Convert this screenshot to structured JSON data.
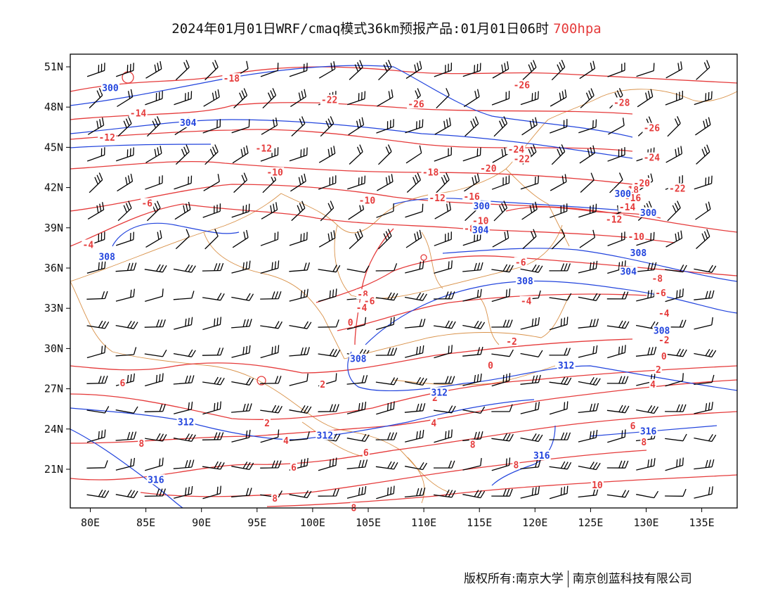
{
  "title": {
    "text": "2024年01月01日WRF/cmaq模式36km预报产品:01月01日06时",
    "level": "700hpa"
  },
  "footer": {
    "copyright": "版权所有:南京大学",
    "company": "南京创蓝科技有限公司"
  },
  "colors": {
    "temperature": "#e53b3b",
    "height": "#2244dd",
    "boundary": "#d9924a",
    "wind": "#000000"
  },
  "axes": {
    "lon_ticks": [
      "80E",
      "85E",
      "90E",
      "95E",
      "100E",
      "105E",
      "110E",
      "115E",
      "120E",
      "125E",
      "130E",
      "135E"
    ],
    "lat_ticks": [
      "51N",
      "48N",
      "45N",
      "42N",
      "39N",
      "36N",
      "33N",
      "30N",
      "27N",
      "24N",
      "21N"
    ]
  },
  "labels": [
    {
      "type": "temp",
      "text": "-18",
      "lon": 92.7,
      "lat": 50.1
    },
    {
      "type": "temp",
      "text": "-14",
      "lon": 84.3,
      "lat": 47.5
    },
    {
      "type": "temp",
      "text": "-12",
      "lon": 81.5,
      "lat": 45.7
    },
    {
      "type": "temp",
      "text": "-22",
      "lon": 101.5,
      "lat": 48.5
    },
    {
      "type": "temp",
      "text": "-26",
      "lon": 109.3,
      "lat": 48.2
    },
    {
      "type": "temp",
      "text": "-26",
      "lon": 118.8,
      "lat": 49.6
    },
    {
      "type": "temp",
      "text": "-28",
      "lon": 127.8,
      "lat": 48.3
    },
    {
      "type": "temp",
      "text": "-26",
      "lon": 130.5,
      "lat": 46.4
    },
    {
      "type": "temp",
      "text": "-24",
      "lon": 130.5,
      "lat": 44.2
    },
    {
      "type": "temp",
      "text": "-24",
      "lon": 118.3,
      "lat": 44.8
    },
    {
      "type": "temp",
      "text": "-22",
      "lon": 118.8,
      "lat": 44.1
    },
    {
      "type": "temp",
      "text": "-20",
      "lon": 115.8,
      "lat": 43.4
    },
    {
      "type": "temp",
      "text": "-18",
      "lon": 110.6,
      "lat": 43.1
    },
    {
      "type": "temp",
      "text": "-22",
      "lon": 132.8,
      "lat": 41.9
    },
    {
      "type": "temp",
      "text": "-20",
      "lon": 129.6,
      "lat": 42.3
    },
    {
      "type": "temp",
      "text": "-18",
      "lon": 128.6,
      "lat": 41.8
    },
    {
      "type": "temp",
      "text": "-16",
      "lon": 128.8,
      "lat": 41.2
    },
    {
      "type": "temp",
      "text": "-14",
      "lon": 128.3,
      "lat": 40.5
    },
    {
      "type": "temp",
      "text": "-12",
      "lon": 127.1,
      "lat": 39.6
    },
    {
      "type": "temp",
      "text": "-10",
      "lon": 129.1,
      "lat": 38.3
    },
    {
      "type": "temp",
      "text": "-16",
      "lon": 114.3,
      "lat": 41.3
    },
    {
      "type": "temp",
      "text": "-12",
      "lon": 111.2,
      "lat": 41.2
    },
    {
      "type": "temp",
      "text": "-10",
      "lon": 115.1,
      "lat": 39.5
    },
    {
      "type": "temp",
      "text": "-8",
      "lon": 114.1,
      "lat": 38.9
    },
    {
      "type": "temp",
      "text": "-6",
      "lon": 118.7,
      "lat": 36.4
    },
    {
      "type": "temp",
      "text": "-10",
      "lon": 96.6,
      "lat": 43.1
    },
    {
      "type": "temp",
      "text": "-12",
      "lon": 95.6,
      "lat": 44.9
    },
    {
      "type": "temp",
      "text": "-10",
      "lon": 104.9,
      "lat": 41.0
    },
    {
      "type": "temp",
      "text": "-6",
      "lon": 85.1,
      "lat": 40.8
    },
    {
      "type": "temp",
      "text": "-4",
      "lon": 79.8,
      "lat": 37.7
    },
    {
      "type": "temp",
      "text": "-8",
      "lon": 104.5,
      "lat": 34.0
    },
    {
      "type": "temp",
      "text": "-6",
      "lon": 105.1,
      "lat": 33.5
    },
    {
      "type": "temp",
      "text": "-4",
      "lon": 104.4,
      "lat": 33.0
    },
    {
      "type": "temp",
      "text": "0",
      "lon": 103.4,
      "lat": 31.9
    },
    {
      "type": "temp",
      "text": "-4",
      "lon": 119.2,
      "lat": 33.5
    },
    {
      "type": "temp",
      "text": "-2",
      "lon": 117.9,
      "lat": 30.5
    },
    {
      "type": "temp",
      "text": "-8",
      "lon": 131.0,
      "lat": 35.2
    },
    {
      "type": "temp",
      "text": "-6",
      "lon": 131.3,
      "lat": 34.1
    },
    {
      "type": "temp",
      "text": "-4",
      "lon": 131.6,
      "lat": 32.6
    },
    {
      "type": "temp",
      "text": "-2",
      "lon": 131.6,
      "lat": 30.6
    },
    {
      "type": "temp",
      "text": "0",
      "lon": 131.6,
      "lat": 29.4
    },
    {
      "type": "temp",
      "text": "0",
      "lon": 116.0,
      "lat": 28.7
    },
    {
      "type": "temp",
      "text": "2",
      "lon": 131.1,
      "lat": 28.4
    },
    {
      "type": "temp",
      "text": "4",
      "lon": 130.6,
      "lat": 27.3
    },
    {
      "type": "temp",
      "text": "2",
      "lon": 111.0,
      "lat": 26.3
    },
    {
      "type": "temp",
      "text": "2",
      "lon": 100.9,
      "lat": 27.3
    },
    {
      "type": "temp",
      "text": "2",
      "lon": 95.9,
      "lat": 24.4
    },
    {
      "type": "temp",
      "text": "4",
      "lon": 97.6,
      "lat": 23.1
    },
    {
      "type": "temp",
      "text": "4",
      "lon": 110.9,
      "lat": 24.4
    },
    {
      "type": "temp",
      "text": "6",
      "lon": 82.9,
      "lat": 27.4
    },
    {
      "type": "temp",
      "text": "8",
      "lon": 84.6,
      "lat": 22.9
    },
    {
      "type": "temp",
      "text": "6",
      "lon": 98.3,
      "lat": 21.1
    },
    {
      "type": "temp",
      "text": "6",
      "lon": 104.8,
      "lat": 22.2
    },
    {
      "type": "temp",
      "text": "8",
      "lon": 114.4,
      "lat": 22.8
    },
    {
      "type": "temp",
      "text": "8",
      "lon": 118.3,
      "lat": 21.3
    },
    {
      "type": "temp",
      "text": "6",
      "lon": 128.8,
      "lat": 24.2
    },
    {
      "type": "temp",
      "text": "8",
      "lon": 129.8,
      "lat": 23.0
    },
    {
      "type": "temp",
      "text": "8",
      "lon": 96.6,
      "lat": 18.8
    },
    {
      "type": "temp",
      "text": "10",
      "lon": 125.6,
      "lat": 19.8
    },
    {
      "type": "temp",
      "text": "8",
      "lon": 103.7,
      "lat": 18.1
    },
    {
      "type": "height",
      "text": "300",
      "lon": 81.8,
      "lat": 49.4
    },
    {
      "type": "height",
      "text": "304",
      "lon": 88.8,
      "lat": 46.8
    },
    {
      "type": "height",
      "text": "300",
      "lon": 115.2,
      "lat": 40.6
    },
    {
      "type": "height",
      "text": "300",
      "lon": 130.2,
      "lat": 40.1
    },
    {
      "type": "height",
      "text": "300",
      "lon": 127.9,
      "lat": 41.5
    },
    {
      "type": "height",
      "text": "308",
      "lon": 81.5,
      "lat": 36.8
    },
    {
      "type": "height",
      "text": "304",
      "lon": 115.1,
      "lat": 38.8
    },
    {
      "type": "height",
      "text": "304",
      "lon": 128.4,
      "lat": 35.7
    },
    {
      "type": "height",
      "text": "308",
      "lon": 129.3,
      "lat": 37.1
    },
    {
      "type": "height",
      "text": "308",
      "lon": 119.1,
      "lat": 35.0
    },
    {
      "type": "height",
      "text": "308",
      "lon": 131.4,
      "lat": 31.3
    },
    {
      "type": "height",
      "text": "308",
      "lon": 104.1,
      "lat": 29.2
    },
    {
      "type": "height",
      "text": "312",
      "lon": 122.8,
      "lat": 28.7
    },
    {
      "type": "height",
      "text": "312",
      "lon": 111.4,
      "lat": 26.7
    },
    {
      "type": "height",
      "text": "312",
      "lon": 88.6,
      "lat": 24.5
    },
    {
      "type": "height",
      "text": "312",
      "lon": 101.1,
      "lat": 23.5
    },
    {
      "type": "height",
      "text": "316",
      "lon": 120.6,
      "lat": 22.0
    },
    {
      "type": "height",
      "text": "316",
      "lon": 130.2,
      "lat": 23.8
    },
    {
      "type": "height",
      "text": "316",
      "lon": 85.9,
      "lat": 20.2
    }
  ]
}
